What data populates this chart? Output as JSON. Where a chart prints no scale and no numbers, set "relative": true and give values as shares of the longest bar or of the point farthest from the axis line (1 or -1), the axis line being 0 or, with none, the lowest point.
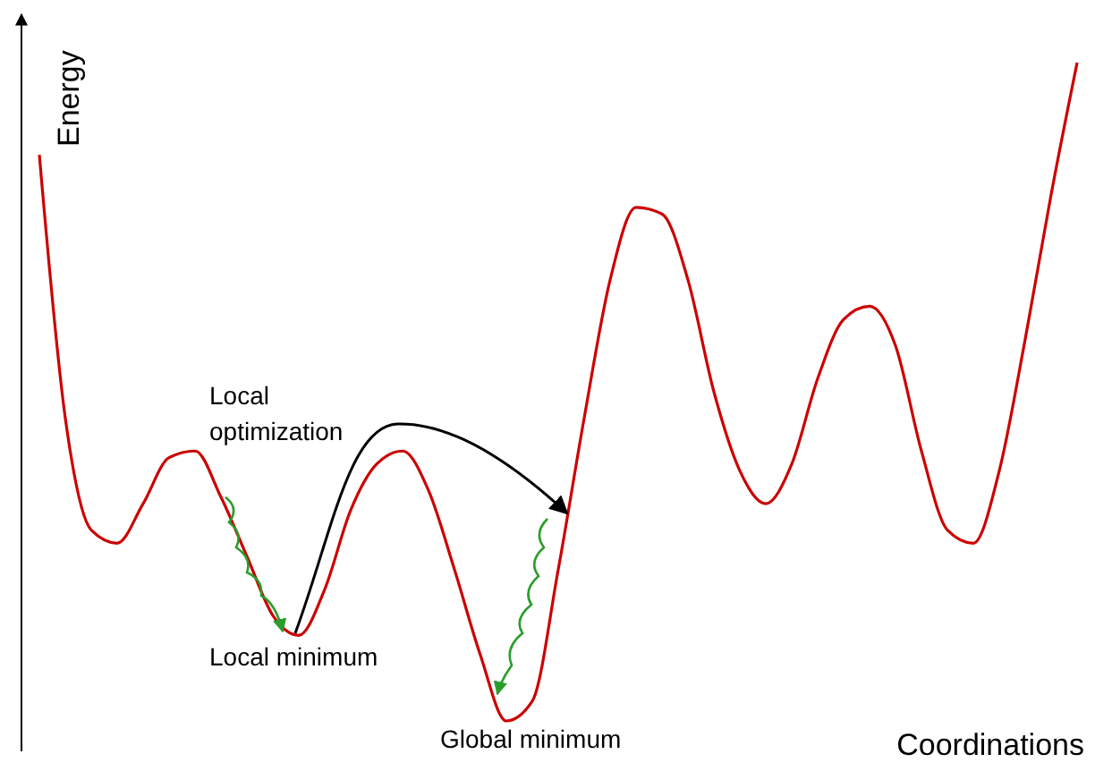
{
  "chart_data": {
    "type": "line",
    "relative": true,
    "ylabel": "Energy",
    "xlabel": "Coordinations",
    "categories": [
      null,
      null,
      null,
      null,
      null,
      null,
      null,
      null,
      null,
      null,
      null,
      null,
      null,
      null,
      null,
      null,
      null,
      null,
      null,
      null,
      null,
      null,
      null,
      null,
      null,
      null,
      null,
      null,
      null,
      null,
      null,
      null,
      null,
      null,
      null,
      null,
      null,
      null,
      null,
      null,
      null
    ],
    "series": [
      {
        "color": "#cc0000",
        "values": [
          0.86,
          0.46,
          0.29,
          0.27,
          0.33,
          0.4,
          0.41,
          0.34,
          0.25,
          0.16,
          0.13,
          0.2,
          0.32,
          0.39,
          0.41,
          0.35,
          0.23,
          0.1,
          0,
          0.03,
          0.23,
          0.46,
          0.67,
          0.78,
          0.77,
          0.67,
          0.5,
          0.38,
          0.33,
          0.39,
          0.52,
          0.61,
          0.63,
          0.57,
          0.41,
          0.29,
          0.27,
          0.38,
          0.58,
          0.8,
          1
        ]
      }
    ],
    "annotations": [
      "Local\noptimization",
      "Local minimum",
      "Global minimum"
    ],
    "marker": "none",
    "line_style": "solid"
  }
}
